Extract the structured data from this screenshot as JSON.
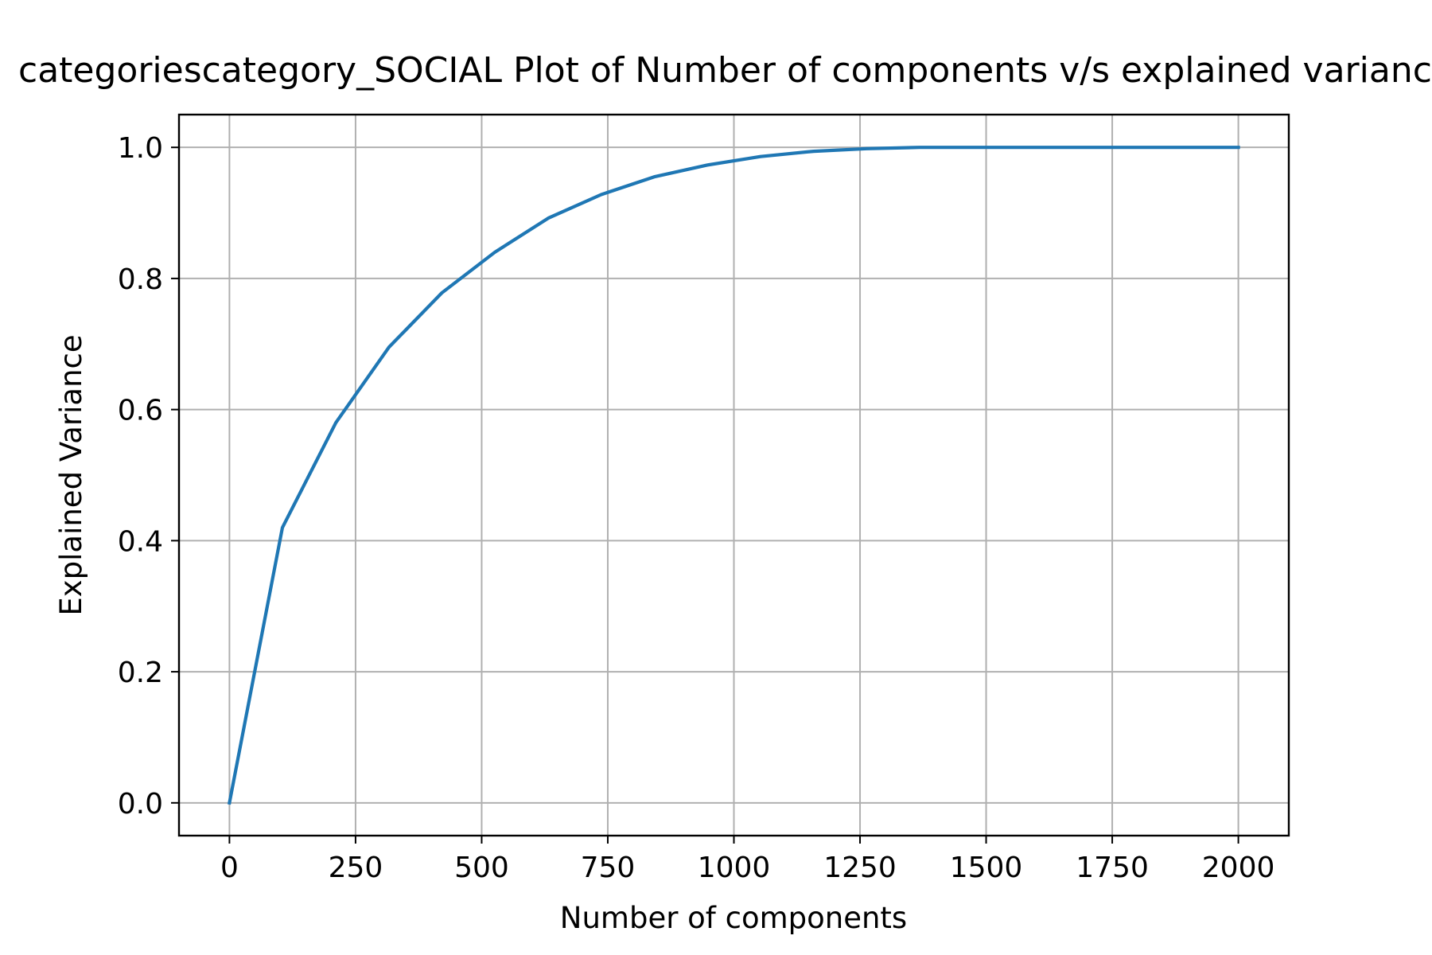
{
  "chart_data": {
    "type": "line",
    "title": "categoriescategory_SOCIAL Plot of Number of components v/s explained variance",
    "xlabel": "Number of components",
    "ylabel": "Explained Variance",
    "xlim": [
      -100,
      2100
    ],
    "ylim": [
      -0.05,
      1.05
    ],
    "x_ticks": [
      0,
      250,
      500,
      750,
      1000,
      1250,
      1500,
      1750,
      2000
    ],
    "x_tick_labels": [
      "0",
      "250",
      "500",
      "750",
      "1000",
      "1250",
      "1500",
      "1750",
      "2000"
    ],
    "y_ticks": [
      0.0,
      0.2,
      0.4,
      0.6,
      0.8,
      1.0
    ],
    "y_tick_labels": [
      "0.0",
      "0.2",
      "0.4",
      "0.6",
      "0.8",
      "1.0"
    ],
    "grid": true,
    "series": [
      {
        "color": "#1f77b4",
        "x": [
          0,
          105,
          211,
          316,
          421,
          526,
          632,
          737,
          842,
          947,
          1053,
          1158,
          1263,
          1368,
          1474,
          1579,
          1684,
          1789,
          1895,
          2000
        ],
        "y": [
          0.0,
          0.42,
          0.58,
          0.695,
          0.778,
          0.84,
          0.892,
          0.928,
          0.955,
          0.973,
          0.986,
          0.994,
          0.998,
          1.0,
          1.0,
          1.0,
          1.0,
          1.0,
          1.0,
          1.0
        ]
      }
    ]
  }
}
